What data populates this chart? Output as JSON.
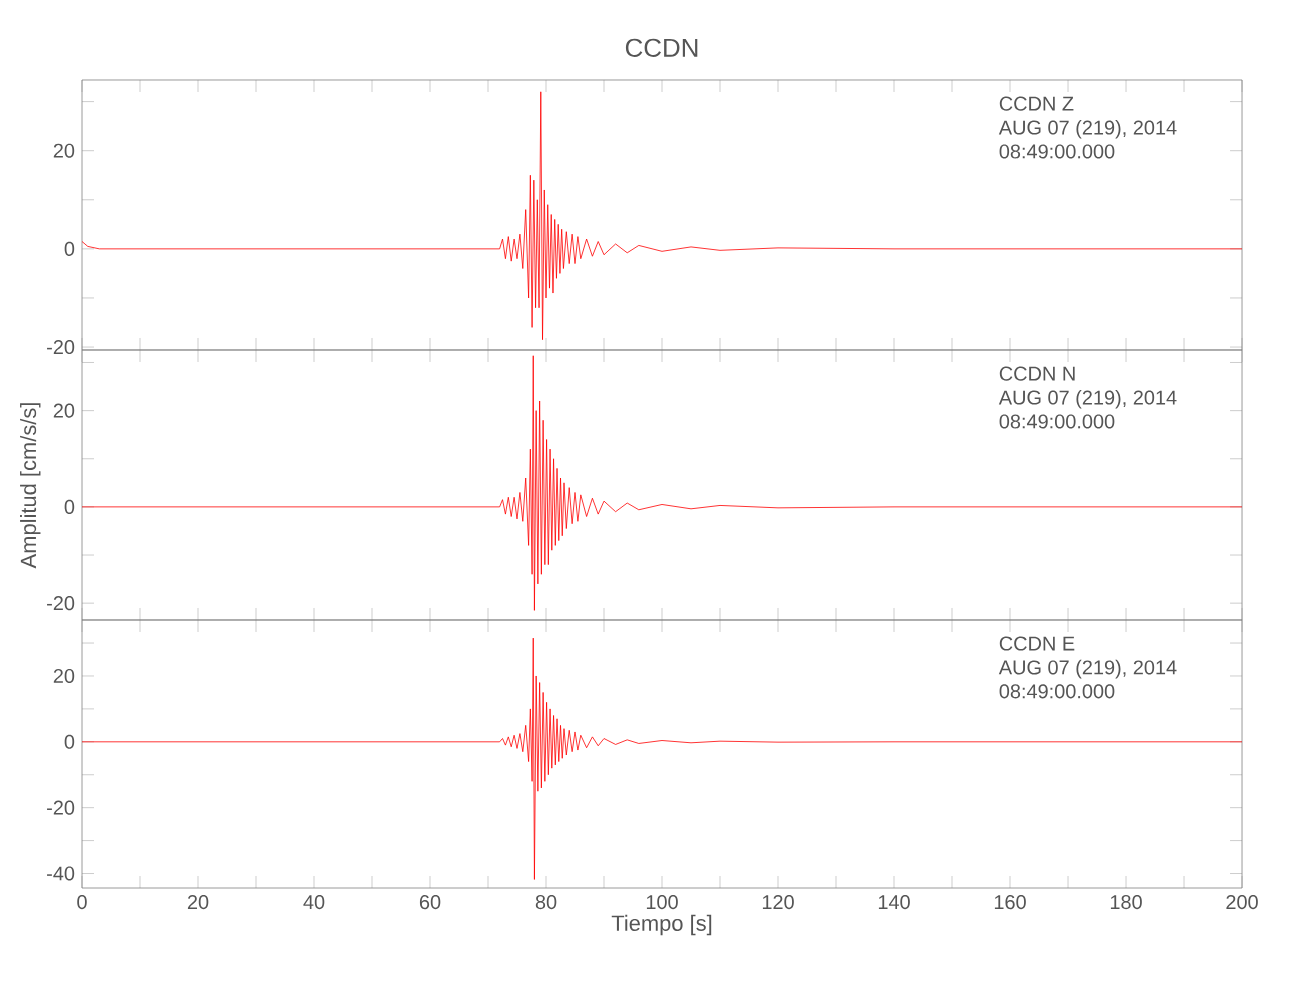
{
  "chart_data": [
    {
      "type": "line",
      "title": "CCDN",
      "x": [
        0,
        1,
        3,
        10,
        30,
        50,
        70,
        72,
        72.5,
        73,
        73.5,
        74,
        74.5,
        75,
        75.5,
        76,
        76.5,
        77,
        77.3,
        77.6,
        77.9,
        78.2,
        78.5,
        78.8,
        79.1,
        79.4,
        79.7,
        80,
        80.3,
        80.6,
        80.9,
        81.2,
        81.5,
        81.8,
        82.1,
        82.4,
        82.7,
        83,
        83.5,
        84,
        84.5,
        85,
        85.5,
        86,
        87,
        88,
        89,
        90,
        92,
        94,
        96,
        100,
        105,
        110,
        120,
        140,
        170,
        200
      ],
      "series": [
        {
          "color": "#ff0000",
          "values": [
            1.5,
            0.5,
            0,
            0,
            0,
            0,
            0,
            0,
            2,
            -2,
            2.5,
            -2.5,
            2,
            -2,
            3,
            -4,
            8,
            -10,
            15,
            -16,
            14,
            -12,
            10,
            -12,
            32,
            -18.5,
            12,
            -10,
            9,
            -8,
            7,
            -9,
            6,
            -6,
            5,
            -5,
            4,
            -4,
            3.5,
            -3,
            3,
            -3,
            2.5,
            -2,
            2,
            -1.5,
            1.5,
            -1.2,
            1,
            -0.8,
            0.7,
            -0.5,
            0.4,
            -0.3,
            0.2,
            0,
            0,
            0
          ]
        }
      ],
      "annotations": [
        "CCDN   Z",
        "AUG 07 (219), 2014",
        "08:49:00.000"
      ],
      "xlim": [
        0,
        200
      ],
      "xticks": [
        0,
        {
          "value": 10,
          "label": null
        },
        20,
        {
          "value": 30,
          "label": null
        },
        40,
        {
          "value": 50,
          "label": null
        },
        60,
        {
          "value": 70,
          "label": null
        },
        80,
        {
          "value": 90,
          "label": null
        },
        100,
        {
          "value": 110,
          "label": null
        },
        120,
        {
          "value": 130,
          "label": null
        },
        140,
        {
          "value": 150,
          "label": null
        },
        160,
        {
          "value": 170,
          "label": null
        },
        180,
        {
          "value": 190,
          "label": null
        },
        200
      ],
      "ylim": [
        -20.6,
        34.4
      ],
      "yticks": [
        -20,
        {
          "value": -10,
          "label": null
        },
        0,
        {
          "value": 10,
          "label": null
        },
        20,
        {
          "value": 30,
          "label": null
        }
      ],
      "tick_labels": "y"
    },
    {
      "type": "line",
      "ylabel": "Amplitud [cm/s/s]",
      "x": [
        0,
        10,
        30,
        50,
        70,
        72,
        72.5,
        73,
        73.5,
        74,
        74.5,
        75,
        75.5,
        76,
        76.5,
        77,
        77.3,
        77.6,
        77.8,
        78,
        78.3,
        78.6,
        78.9,
        79.2,
        79.5,
        79.8,
        80.1,
        80.4,
        80.7,
        81,
        81.3,
        81.6,
        81.9,
        82.2,
        82.5,
        82.8,
        83.1,
        83.5,
        84,
        84.5,
        85,
        85.5,
        86,
        87,
        88,
        89,
        90,
        92,
        94,
        96,
        100,
        105,
        110,
        120,
        140,
        170,
        200
      ],
      "series": [
        {
          "color": "#ff0000",
          "values": [
            0,
            0,
            0,
            0,
            0,
            0,
            1.5,
            -1.5,
            2,
            -2,
            2,
            -2.5,
            3,
            -3,
            6,
            -8,
            12,
            -14,
            31.4,
            -21.5,
            20,
            -16,
            22,
            -14,
            18,
            -12,
            14,
            -12,
            12,
            -9,
            10,
            -8,
            8,
            -7,
            6,
            -6,
            5,
            -4.5,
            4,
            -3.5,
            3,
            -3,
            2.5,
            -2,
            1.8,
            -1.5,
            1.2,
            -1,
            0.8,
            -0.6,
            0.5,
            -0.4,
            0.3,
            -0.2,
            0,
            0,
            0
          ]
        }
      ],
      "annotations": [
        "CCDN   N",
        "AUG 07 (219), 2014",
        "08:49:00.000"
      ],
      "xlim": [
        0,
        200
      ],
      "xticks": [
        0,
        {
          "value": 10,
          "label": null
        },
        20,
        {
          "value": 30,
          "label": null
        },
        40,
        {
          "value": 50,
          "label": null
        },
        60,
        {
          "value": 70,
          "label": null
        },
        80,
        {
          "value": 90,
          "label": null
        },
        100,
        {
          "value": 110,
          "label": null
        },
        120,
        {
          "value": 130,
          "label": null
        },
        140,
        {
          "value": 150,
          "label": null
        },
        160,
        {
          "value": 170,
          "label": null
        },
        180,
        {
          "value": 190,
          "label": null
        },
        200
      ],
      "ylim": [
        -23.5,
        32.6
      ],
      "yticks": [
        -20,
        {
          "value": -10,
          "label": null
        },
        0,
        {
          "value": 10,
          "label": null
        },
        20,
        {
          "value": 30,
          "label": null
        }
      ],
      "tick_labels": "y"
    },
    {
      "type": "line",
      "xlabel": "Tiempo [s]",
      "x": [
        0,
        10,
        30,
        50,
        70,
        72,
        72.5,
        73,
        73.5,
        74,
        74.5,
        75,
        75.5,
        76,
        76.5,
        77,
        77.3,
        77.6,
        77.8,
        78,
        78.3,
        78.6,
        78.9,
        79.2,
        79.5,
        79.8,
        80.1,
        80.4,
        80.7,
        81,
        81.3,
        81.6,
        81.9,
        82.2,
        82.5,
        82.8,
        83.1,
        83.5,
        84,
        84.5,
        85,
        85.5,
        86,
        87,
        88,
        89,
        90,
        92,
        94,
        96,
        100,
        105,
        110,
        120,
        140,
        170,
        200
      ],
      "series": [
        {
          "color": "#ff0000",
          "values": [
            0,
            0,
            0,
            0,
            0,
            0,
            1,
            -1,
            1.5,
            -1.5,
            2,
            -2,
            2.5,
            -3,
            5,
            -6,
            10,
            -12,
            31.5,
            -41.8,
            20,
            -15,
            18,
            -14,
            15,
            -12,
            12,
            -10,
            10,
            -8,
            8,
            -7,
            7,
            -6,
            5,
            -5,
            4,
            -4,
            3.5,
            -3,
            3,
            -2.5,
            2,
            -1.8,
            1.5,
            -1.2,
            1,
            -0.8,
            0.6,
            -0.5,
            0.4,
            -0.3,
            0.2,
            -0.1,
            0,
            0,
            0
          ]
        }
      ],
      "annotations": [
        "CCDN   E",
        "AUG 07 (219), 2014",
        "08:49:00.000"
      ],
      "xlim": [
        0,
        200
      ],
      "xticks": [
        0,
        {
          "value": 10,
          "label": null
        },
        20,
        {
          "value": 30,
          "label": null
        },
        40,
        {
          "value": 50,
          "label": null
        },
        60,
        {
          "value": 70,
          "label": null
        },
        80,
        {
          "value": 90,
          "label": null
        },
        100,
        {
          "value": 110,
          "label": null
        },
        120,
        {
          "value": 130,
          "label": null
        },
        140,
        {
          "value": 150,
          "label": null
        },
        160,
        {
          "value": 170,
          "label": null
        },
        180,
        {
          "value": 190,
          "label": null
        },
        200
      ],
      "ylim": [
        -44.4,
        37
      ],
      "yticks": [
        -40,
        {
          "value": -30,
          "label": null
        },
        -20,
        {
          "value": -10,
          "label": null
        },
        0,
        {
          "value": 10,
          "label": null
        },
        20,
        {
          "value": 30,
          "label": null
        }
      ]
    }
  ]
}
